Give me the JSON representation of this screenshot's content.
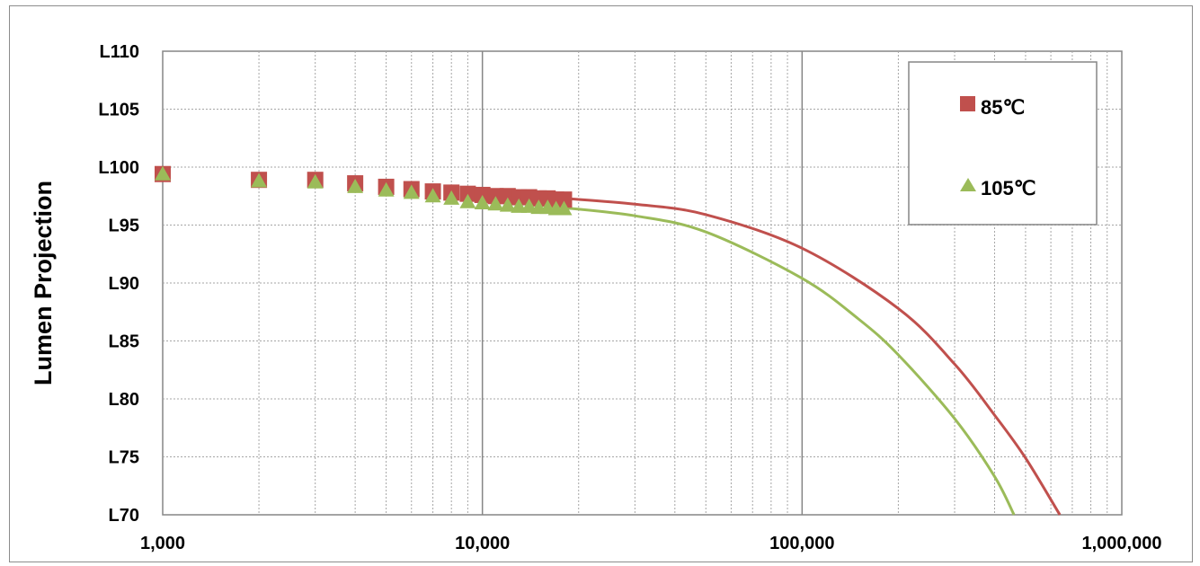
{
  "chart_data": {
    "type": "scatter",
    "title": "",
    "xlabel": "",
    "ylabel": "Lumen Projection",
    "x_scale": "log",
    "xlim": [
      1000,
      1000000
    ],
    "ylim": [
      70,
      110
    ],
    "x_ticks": [
      1000,
      10000,
      100000,
      1000000
    ],
    "x_tick_labels": [
      "1,000",
      "10,000",
      "100,000",
      "1,000,000"
    ],
    "y_ticks": [
      70,
      75,
      80,
      85,
      90,
      95,
      100,
      105,
      110
    ],
    "y_tick_labels": [
      "L70",
      "L75",
      "L80",
      "L85",
      "L90",
      "L95",
      "L100",
      "L105",
      "L110"
    ],
    "grid": true,
    "legend_position": "top-right",
    "series": [
      {
        "name": "85℃",
        "color": "#c0504d",
        "marker": "square",
        "x": [
          1000,
          2000,
          3000,
          4000,
          5000,
          6000,
          7000,
          8000,
          9000,
          10000,
          11000,
          12000,
          13000,
          14000,
          15000,
          16000,
          17000,
          18000
        ],
        "y": [
          99.4,
          98.9,
          98.9,
          98.6,
          98.3,
          98.1,
          97.9,
          97.8,
          97.7,
          97.6,
          97.5,
          97.5,
          97.4,
          97.4,
          97.3,
          97.3,
          97.2,
          97.2
        ],
        "projection": {
          "color": "#c0504d",
          "x": [
            18000,
            30000,
            50000,
            100000,
            200000,
            300000,
            400000,
            500000,
            640000
          ],
          "y": [
            97.3,
            96.8,
            95.9,
            93.0,
            87.8,
            83.0,
            78.6,
            74.9,
            70.0
          ]
        }
      },
      {
        "name": "105℃",
        "color": "#9bbb59",
        "marker": "triangle",
        "x": [
          1000,
          2000,
          3000,
          4000,
          5000,
          6000,
          7000,
          8000,
          9000,
          10000,
          11000,
          12000,
          13000,
          14000,
          15000,
          16000,
          17000,
          18000
        ],
        "y": [
          99.4,
          98.8,
          98.7,
          98.3,
          98.0,
          97.8,
          97.5,
          97.3,
          97.0,
          96.9,
          96.8,
          96.7,
          96.6,
          96.6,
          96.5,
          96.5,
          96.4,
          96.4
        ],
        "projection": {
          "color": "#9bbb59",
          "x": [
            18000,
            30000,
            50000,
            100000,
            150000,
            200000,
            300000,
            400000,
            460000
          ],
          "y": [
            96.5,
            95.8,
            94.4,
            90.4,
            86.9,
            83.8,
            78.3,
            73.3,
            70.0
          ]
        }
      }
    ]
  }
}
